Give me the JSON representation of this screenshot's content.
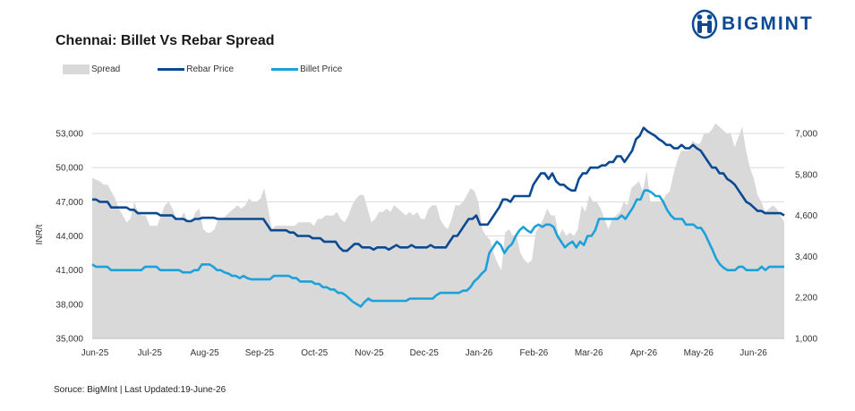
{
  "brand": {
    "name": "BIGMINT",
    "logo_icon": "bigmint-people-icon",
    "color": "#0b4a92"
  },
  "title": "Chennai: Billet Vs Rebar Spread",
  "source": "Soruce: BigMInt | Last Updated:19-June-26",
  "legend": [
    {
      "label": "Spread",
      "kind": "area",
      "color": "#d9d9d9"
    },
    {
      "label": "Rebar Price",
      "kind": "line",
      "color": "#0b4a92"
    },
    {
      "label": "Billet Price",
      "kind": "line",
      "color": "#1ea1db"
    }
  ],
  "chart_data": {
    "type": "line",
    "title": "Chennai: Billet Vs Rebar Spread",
    "ylabel": "INR/t",
    "ylim": [
      35000,
      54500
    ],
    "y2lim": [
      1000,
      7500
    ],
    "yticks": [
      "35,000",
      "38,000",
      "41,000",
      "44,000",
      "47,000",
      "50,000",
      "53,000"
    ],
    "y2ticks": [
      "1,000",
      "2,200",
      "3,400",
      "4,600",
      "5,800",
      "7,000"
    ],
    "x_labels": [
      "Jun-25",
      "Jul-25",
      "Aug-25",
      "Sep-25",
      "Oct-25",
      "Nov-25",
      "Dec-25",
      "Jan-26",
      "Feb-26",
      "Mar-26",
      "Apr-26",
      "May-26",
      "Jun-26"
    ],
    "grid": "horizontal",
    "legend_position": "top-left",
    "series": [
      {
        "name": "Rebar Price",
        "axis": "left",
        "color": "#0b4a92",
        "values": [
          47200,
          47200,
          47000,
          47000,
          47000,
          46500,
          46500,
          46500,
          46500,
          46500,
          46300,
          46300,
          46000,
          46000,
          46000,
          46000,
          46000,
          46000,
          45800,
          45800,
          45800,
          45800,
          45500,
          45500,
          45500,
          45300,
          45300,
          45500,
          45500,
          45600,
          45600,
          45600,
          45600,
          45500,
          45500,
          45500,
          45500,
          45500,
          45500,
          45500,
          45500,
          45500,
          45500,
          45500,
          45500,
          45500,
          45000,
          44500,
          44500,
          44500,
          44500,
          44500,
          44300,
          44300,
          44000,
          44000,
          44000,
          44000,
          43800,
          43800,
          43800,
          43500,
          43500,
          43500,
          43500,
          43000,
          42700,
          42700,
          43000,
          43300,
          43300,
          43000,
          43000,
          43000,
          42800,
          43000,
          43000,
          43000,
          42800,
          43000,
          43200,
          43000,
          43000,
          43000,
          43200,
          43000,
          43000,
          43000,
          43000,
          43200,
          43000,
          43000,
          43000,
          43000,
          43500,
          44000,
          44000,
          44500,
          45000,
          45500,
          45500,
          45800,
          45000,
          45000,
          45000,
          45500,
          46000,
          46500,
          47200,
          47200,
          47000,
          47500,
          47500,
          47500,
          47500,
          47500,
          48500,
          49000,
          49500,
          49500,
          49000,
          49500,
          48800,
          48500,
          48500,
          48200,
          48000,
          48000,
          49000,
          49500,
          49500,
          50000,
          50000,
          50000,
          50200,
          50200,
          50500,
          50500,
          51000,
          51000,
          50500,
          51000,
          51500,
          52500,
          52800,
          53500,
          53200,
          53000,
          52800,
          52500,
          52300,
          52000,
          52000,
          51700,
          51700,
          52000,
          51700,
          51700,
          52000,
          51700,
          51500,
          51000,
          50500,
          50000,
          50000,
          49500,
          49500,
          49000,
          48800,
          48500,
          48000,
          47500,
          47000,
          46800,
          46500,
          46200,
          46200,
          46000,
          46000,
          46000,
          46000,
          46000,
          45800
        ]
      },
      {
        "name": "Billet Price",
        "axis": "left",
        "color": "#1ea1db",
        "values": [
          41500,
          41300,
          41300,
          41300,
          41300,
          41000,
          41000,
          41000,
          41000,
          41000,
          41000,
          41000,
          41000,
          41000,
          41300,
          41300,
          41300,
          41300,
          41000,
          41000,
          41000,
          41000,
          41000,
          41000,
          40800,
          40800,
          40800,
          41000,
          41000,
          41500,
          41500,
          41500,
          41300,
          41000,
          41000,
          40800,
          40700,
          40500,
          40500,
          40300,
          40500,
          40300,
          40200,
          40200,
          40200,
          40200,
          40200,
          40200,
          40500,
          40500,
          40500,
          40500,
          40500,
          40300,
          40300,
          40000,
          40000,
          40000,
          40000,
          39800,
          39800,
          39500,
          39500,
          39300,
          39300,
          39000,
          39000,
          38800,
          38500,
          38200,
          38000,
          37800,
          38200,
          38500,
          38300,
          38300,
          38300,
          38300,
          38300,
          38300,
          38300,
          38300,
          38300,
          38300,
          38500,
          38500,
          38500,
          38500,
          38500,
          38500,
          38500,
          38800,
          39000,
          39000,
          39000,
          39000,
          39000,
          39000,
          39200,
          39200,
          39500,
          40000,
          40300,
          40700,
          41000,
          42500,
          43000,
          43500,
          43200,
          42500,
          43000,
          43300,
          44000,
          44500,
          44800,
          44500,
          44300,
          44800,
          45000,
          44800,
          45000,
          45000,
          44800,
          44000,
          43500,
          43000,
          43300,
          43500,
          43000,
          43500,
          43200,
          44000,
          44000,
          44500,
          45500,
          45500,
          45500,
          45500,
          45500,
          45500,
          45800,
          45500,
          46000,
          46500,
          47200,
          47200,
          48000,
          48000,
          47800,
          47500,
          47500,
          47000,
          46300,
          45800,
          45500,
          45500,
          45500,
          45000,
          45000,
          45000,
          44700,
          44700,
          44200,
          43500,
          42800,
          42000,
          41500,
          41200,
          41000,
          41000,
          41000,
          41300,
          41300,
          41000,
          41000,
          41000,
          41000,
          41300,
          41000,
          41300,
          41300,
          41300,
          41300,
          41300
        ]
      },
      {
        "name": "Spread",
        "axis": "right",
        "color": "#d9d9d9",
        "values": [
          5700,
          5650,
          5600,
          5500,
          5500,
          5300,
          5100,
          4800,
          4600,
          4400,
          4500,
          5000,
          4700,
          4600,
          4600,
          4300,
          4300,
          4300,
          4600,
          4900,
          5000,
          4800,
          4500,
          4500,
          4700,
          4400,
          4400,
          4700,
          4800,
          4200,
          4100,
          4100,
          4200,
          4500,
          4500,
          4600,
          4700,
          4800,
          4900,
          4800,
          4900,
          5100,
          5000,
          5000,
          5100,
          5400,
          4800,
          4200,
          4300,
          4300,
          4300,
          4300,
          4300,
          4300,
          4400,
          4400,
          4400,
          4400,
          4300,
          4500,
          4500,
          4600,
          4600,
          4600,
          4700,
          4500,
          4400,
          4600,
          4900,
          5100,
          5200,
          5200,
          4800,
          4400,
          4500,
          4700,
          4700,
          4800,
          4700,
          4900,
          4800,
          4700,
          4600,
          4700,
          4600,
          4700,
          4500,
          4500,
          4800,
          4900,
          4900,
          4500,
          4300,
          4200,
          4500,
          4900,
          4900,
          5000,
          5200,
          5400,
          5300,
          5000,
          4200,
          4000,
          3900,
          3500,
          3200,
          3000,
          4100,
          4200,
          4000,
          4000,
          3500,
          3300,
          3200,
          3300,
          4100,
          4300,
          4500,
          4800,
          4600,
          4600,
          4000,
          4200,
          4000,
          4100,
          4000,
          4200,
          4900,
          4700,
          5200,
          5000,
          5000,
          4800,
          4500,
          4200,
          4500,
          4600,
          4700,
          5000,
          4900,
          5400,
          5500,
          5600,
          5300,
          5900,
          5000,
          5000,
          5000,
          5000,
          5200,
          5300,
          5800,
          6200,
          6500,
          6500,
          6500,
          6800,
          6700,
          6700,
          7000,
          7000,
          7100,
          7300,
          7200,
          7100,
          7000,
          7000,
          6600,
          6900,
          7200,
          6500,
          6000,
          5700,
          5200,
          5000,
          4700,
          4800,
          4900,
          4800,
          4600,
          4400
        ]
      }
    ]
  }
}
